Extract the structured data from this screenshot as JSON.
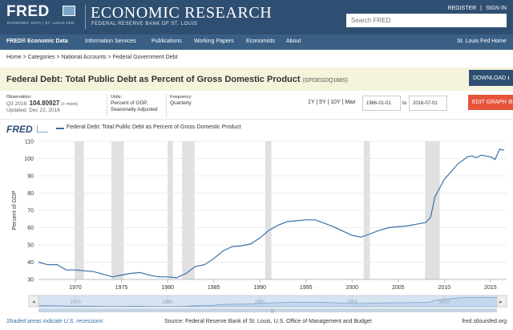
{
  "header": {
    "logo": "FRED",
    "logo_sub": "ECONOMIC DATA | ST. LOUIS FED",
    "title": "ECONOMIC RESEARCH",
    "subtitle": "FEDERAL RESERVE BANK OF ST. LOUIS",
    "register": "REGISTER",
    "sign_in": "SIGN IN",
    "search_placeholder": "Search FRED"
  },
  "nav": {
    "items": [
      "FRED® Economic Data",
      "Information Services",
      "Publications",
      "Working Papers",
      "Economists",
      "About"
    ],
    "right": "St. Louis Fed Home"
  },
  "breadcrumb": "Home > Categories > National Accounts > Federal Government Debt",
  "series": {
    "title": "Federal Debt: Total Public Debt as Percent of Gross Domestic Product",
    "id": "(GFDEGDQ188S)",
    "download_label": "DOWNLOAD"
  },
  "meta": {
    "observation_label": "Observation:",
    "observation_period": "Q3 2016:",
    "observation_value": "104.80927",
    "observation_more": "(+ more)",
    "updated": "Updated: Dec 22, 2016",
    "units_label": "Units:",
    "units_line1": "Percent of GDP,",
    "units_line2": "Seasonally Adjusted",
    "frequency_label": "Frequency:",
    "frequency": "Quarterly"
  },
  "controls": {
    "ranges": "1Y | 5Y | 10Y | Max",
    "start_date": "1966-01-01",
    "to": "to",
    "end_date": "2016-07-01",
    "edit_label": "EDIT GRAPH"
  },
  "chart_data": {
    "type": "line",
    "legend_logo": "FRED",
    "series": [
      {
        "name": "Federal Debt: Total Public Debt as Percent of Gross Domestic Product",
        "color": "#3b6ea8",
        "points": [
          [
            1966.0,
            40
          ],
          [
            1967.0,
            38.5
          ],
          [
            1968.0,
            38.6
          ],
          [
            1969.0,
            35.5
          ],
          [
            1970.0,
            35.5
          ],
          [
            1971.0,
            35
          ],
          [
            1972.0,
            34.5
          ],
          [
            1973.0,
            33
          ],
          [
            1974.0,
            31.5
          ],
          [
            1975.0,
            32.5
          ],
          [
            1976.0,
            33.5
          ],
          [
            1977.0,
            34
          ],
          [
            1978.0,
            32.5
          ],
          [
            1979.0,
            31.5
          ],
          [
            1980.0,
            31.5
          ],
          [
            1981.0,
            31
          ],
          [
            1982.0,
            33.5
          ],
          [
            1983.0,
            37.5
          ],
          [
            1984.0,
            38.5
          ],
          [
            1985.0,
            42
          ],
          [
            1986.0,
            46.5
          ],
          [
            1987.0,
            49
          ],
          [
            1988.0,
            49.5
          ],
          [
            1989.0,
            50.5
          ],
          [
            1990.0,
            54
          ],
          [
            1991.0,
            58.5
          ],
          [
            1992.0,
            61.5
          ],
          [
            1993.0,
            63.5
          ],
          [
            1994.0,
            64
          ],
          [
            1995.0,
            64.5
          ],
          [
            1996.0,
            64.5
          ],
          [
            1997.0,
            62.5
          ],
          [
            1998.0,
            60.5
          ],
          [
            1999.0,
            58
          ],
          [
            2000.0,
            55.5
          ],
          [
            2001.0,
            54.5
          ],
          [
            2002.0,
            56.5
          ],
          [
            2003.0,
            58.5
          ],
          [
            2004.0,
            60
          ],
          [
            2005.0,
            60.5
          ],
          [
            2006.0,
            61
          ],
          [
            2007.0,
            62
          ],
          [
            2008.0,
            63
          ],
          [
            2008.5,
            66
          ],
          [
            2009.0,
            78
          ],
          [
            2009.5,
            83
          ],
          [
            2010.0,
            88
          ],
          [
            2010.5,
            91
          ],
          [
            2011.0,
            94
          ],
          [
            2011.5,
            97
          ],
          [
            2012.0,
            99
          ],
          [
            2012.5,
            101
          ],
          [
            2013.0,
            101.5
          ],
          [
            2013.5,
            100.5
          ],
          [
            2014.0,
            102
          ],
          [
            2014.5,
            101.5
          ],
          [
            2015.0,
            101
          ],
          [
            2015.5,
            99.5
          ],
          [
            2016.0,
            105.5
          ],
          [
            2016.5,
            104.8
          ]
        ]
      }
    ],
    "ylabel": "Percent of GDP",
    "ylim": [
      30,
      110
    ],
    "yticks": [
      30,
      40,
      50,
      60,
      70,
      80,
      90,
      100,
      110
    ],
    "xlim": [
      1966,
      2016.75
    ],
    "xticks": [
      1970,
      1975,
      1980,
      1985,
      1990,
      1995,
      2000,
      2005,
      2010,
      2015
    ],
    "recessions": [
      [
        1969.92,
        1970.92
      ],
      [
        1973.92,
        1975.25
      ],
      [
        1980.0,
        1980.58
      ],
      [
        1981.58,
        1982.92
      ],
      [
        1990.58,
        1991.25
      ],
      [
        2001.25,
        2001.92
      ],
      [
        2007.92,
        2009.5
      ]
    ],
    "navigator_ticks": [
      "1970",
      "1980",
      "1990",
      "2000",
      "2010"
    ],
    "grid": true
  },
  "footer": {
    "note": "Shaded areas indicate U.S. recessions",
    "source": "Source: Federal Reserve Bank of St. Louis, U.S. Office of Management and Budget",
    "site": "fred.stlouisfed.org"
  },
  "colors": {
    "banner": "#2f4f72",
    "nav": "#3a5f85",
    "title_bg": "#f5f3dc",
    "edit_button": "#e6553b",
    "series": "#3b6ea8",
    "recession": "#e0e0e0"
  },
  "icons": [
    "download-icon",
    "gear-icon",
    "scroll-left-icon",
    "scroll-right-icon"
  ]
}
